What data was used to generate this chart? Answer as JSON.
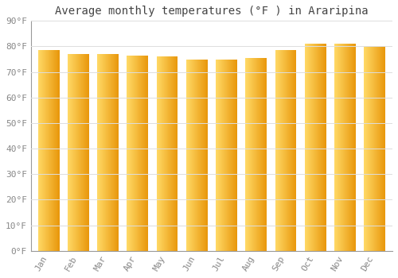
{
  "title": "Average monthly temperatures (°F ) in Araripina",
  "months": [
    "Jan",
    "Feb",
    "Mar",
    "Apr",
    "May",
    "Jun",
    "Jul",
    "Aug",
    "Sep",
    "Oct",
    "Nov",
    "Dec"
  ],
  "values": [
    78.5,
    77.0,
    77.0,
    76.5,
    76.0,
    75.0,
    75.0,
    75.5,
    78.5,
    81.0,
    81.0,
    80.0
  ],
  "bar_color": "#FFA500",
  "bar_edge_color": "#E8960A",
  "ylim": [
    0,
    90
  ],
  "yticks": [
    0,
    10,
    20,
    30,
    40,
    50,
    60,
    70,
    80,
    90
  ],
  "ytick_labels": [
    "0°F",
    "10°F",
    "20°F",
    "30°F",
    "40°F",
    "50°F",
    "60°F",
    "70°F",
    "80°F",
    "90°F"
  ],
  "background_color": "#FFFFFF",
  "plot_bg_color": "#FFFFFF",
  "grid_color": "#DDDDDD",
  "title_fontsize": 10,
  "tick_fontsize": 8,
  "font_family": "monospace",
  "tick_color": "#888888",
  "title_color": "#444444"
}
